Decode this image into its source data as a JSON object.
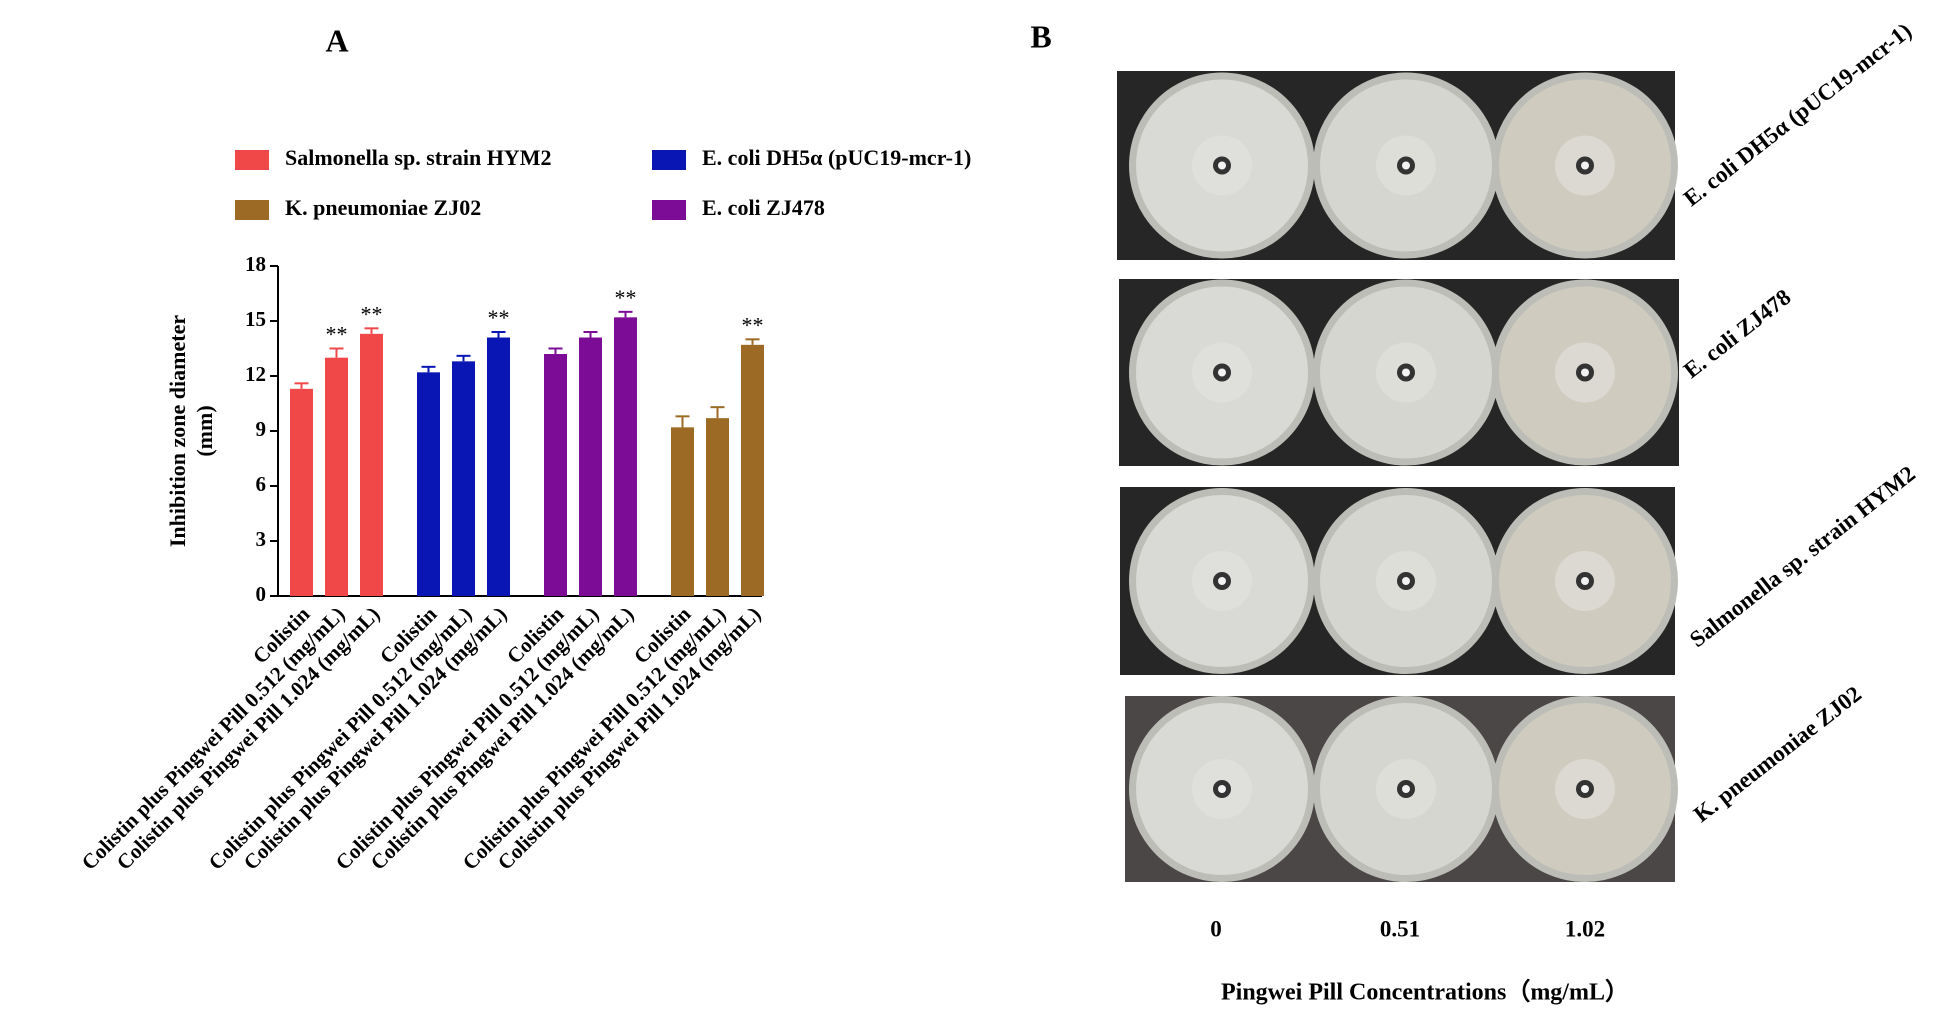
{
  "chart_data": {
    "type": "bar",
    "panel": "A",
    "ylabel": [
      "Inhibition zone diameter",
      "(mm)"
    ],
    "categories": [
      "Colistin",
      "Colistin plus Pingwei Pill 0.512 (mg/mL)",
      "Colistin plus Pingwei Pill 1.024 (mg/mL)"
    ],
    "series": [
      {
        "name": "Salmonella sp. strain HYM2",
        "color": "#f04848",
        "values": [
          11.3,
          13.0,
          14.3
        ],
        "errors": [
          0.3,
          0.5,
          0.3
        ],
        "significance": [
          null,
          "**",
          "**"
        ]
      },
      {
        "name": "E. coli DH5α (pUC19-mcr-1)",
        "color": "#0a16b4",
        "values": [
          12.2,
          12.8,
          14.1
        ],
        "errors": [
          0.3,
          0.3,
          0.3
        ],
        "significance": [
          null,
          null,
          "**"
        ]
      },
      {
        "name": "E. coli ZJ478",
        "color": "#7c0c96",
        "values": [
          13.2,
          14.1,
          15.2
        ],
        "errors": [
          0.3,
          0.3,
          0.3
        ],
        "significance": [
          null,
          null,
          "**"
        ]
      },
      {
        "name": "K. pneumoniae ZJ02",
        "color": "#9c6a24",
        "values": [
          9.2,
          9.7,
          13.7
        ],
        "errors": [
          0.6,
          0.6,
          0.3
        ],
        "significance": [
          null,
          null,
          "**"
        ]
      }
    ],
    "ylim": [
      0,
      18
    ],
    "yticks": [
      0,
      3,
      6,
      9,
      12,
      15,
      18
    ],
    "grid": false
  },
  "panel_b": {
    "panel": "B",
    "rows": [
      "E. coli DH5α (pUC19-mcr-1)",
      "E. coli ZJ478",
      "Salmonella sp. strain HYM2",
      "K. pneumoniae ZJ02"
    ],
    "columns": [
      "0",
      "0.51",
      "1.02"
    ],
    "xlabel": "Pingwei Pill Concentrations（mg/mL）"
  }
}
